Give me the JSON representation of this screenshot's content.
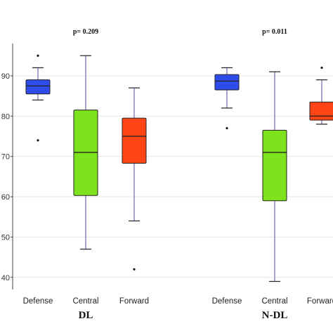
{
  "chart_data": {
    "type": "boxplot",
    "y_ticks": [
      40,
      50,
      60,
      70,
      80,
      90
    ],
    "y_tick_labels": [
      "40",
      "50",
      "60",
      "70",
      "80",
      "90"
    ],
    "ylim": [
      37,
      98
    ],
    "grid": "horizontal",
    "colors": {
      "Defense": "#2f4bea",
      "Central": "#7ee31c",
      "Forward": "#ff4515",
      "whisker": "#8f86c4"
    },
    "groups": [
      {
        "label": "DL",
        "p_value": "p= 0.209",
        "boxes": [
          {
            "category": "Defense",
            "min": 84,
            "q1": 85.5,
            "median": 87.5,
            "q3": 89,
            "max": 92,
            "outliers": [
              95,
              74
            ]
          },
          {
            "category": "Central",
            "min": 47,
            "q1": 60.3,
            "median": 71,
            "q3": 81.5,
            "max": 95,
            "outliers": []
          },
          {
            "category": "Forward",
            "min": 54,
            "q1": 68.3,
            "median": 75,
            "q3": 79.5,
            "max": 87,
            "outliers": [
              42
            ]
          }
        ]
      },
      {
        "label": "N-DL",
        "p_value": "p= 0.011",
        "boxes": [
          {
            "category": "Defense",
            "min": 82,
            "q1": 86.5,
            "median": 88.7,
            "q3": 90.3,
            "max": 92,
            "outliers": [
              77
            ]
          },
          {
            "category": "Central",
            "min": 39,
            "q1": 59,
            "median": 71,
            "q3": 76.5,
            "max": 91,
            "outliers": []
          },
          {
            "category": "Forward",
            "min": 78,
            "q1": 79,
            "median": 80,
            "q3": 83.5,
            "max": 89,
            "outliers": [
              92
            ]
          }
        ]
      }
    ]
  }
}
